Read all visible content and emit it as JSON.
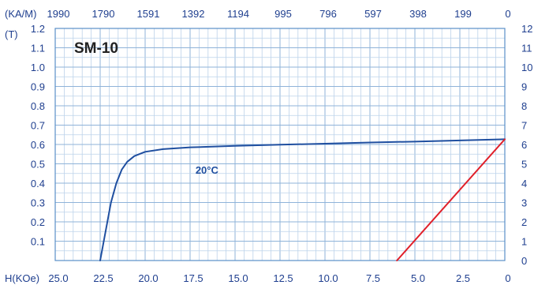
{
  "chart_data": {
    "type": "line",
    "title": "SM-10",
    "top_axis": {
      "unit_label": "(KA/M)",
      "ticks": [
        "1990",
        "1790",
        "1591",
        "1392",
        "1194",
        "995",
        "796",
        "597",
        "398",
        "199",
        "0"
      ],
      "range": [
        1990,
        0
      ]
    },
    "bottom_axis": {
      "unit_label": "H(KOe)",
      "ticks": [
        "25.0",
        "22.5",
        "20.0",
        "17.5",
        "15.0",
        "12.5",
        "10.0",
        "7.5",
        "5.0",
        "2.5",
        "0"
      ],
      "range": [
        25,
        0
      ]
    },
    "left_axis": {
      "unit_label": "(T)",
      "ticks": [
        "1.2",
        "1.1",
        "1.0",
        "0.9",
        "0.8",
        "0.7",
        "0.6",
        "0.5",
        "0.4",
        "0.3",
        "0.2",
        "0.1"
      ],
      "range": [
        0,
        1.2
      ]
    },
    "right_axis": {
      "ticks": [
        "12",
        "11",
        "10",
        "9",
        "8",
        "7",
        "6",
        "5",
        "4",
        "3",
        "2",
        "1",
        "0"
      ],
      "range": [
        0,
        12
      ]
    },
    "grid": true,
    "series": [
      {
        "name": "20°C",
        "color": "#1f4fa0",
        "x": [
          0,
          2.5,
          5.0,
          7.5,
          10.0,
          12.5,
          15.0,
          17.5,
          19.0,
          20.0,
          20.6,
          21.0,
          21.3,
          21.6,
          21.9,
          22.1,
          22.5
        ],
        "y": [
          0.627,
          0.621,
          0.615,
          0.61,
          0.604,
          0.599,
          0.593,
          0.585,
          0.576,
          0.562,
          0.54,
          0.51,
          0.47,
          0.4,
          0.3,
          0.2,
          0.0
        ]
      },
      {
        "name": "",
        "color": "#e0202a",
        "x": [
          6.0,
          0
        ],
        "y": [
          0.0,
          0.627
        ]
      }
    ],
    "annotations": [
      {
        "text": "20°C",
        "x": 17.2,
        "y": 0.47
      }
    ]
  }
}
